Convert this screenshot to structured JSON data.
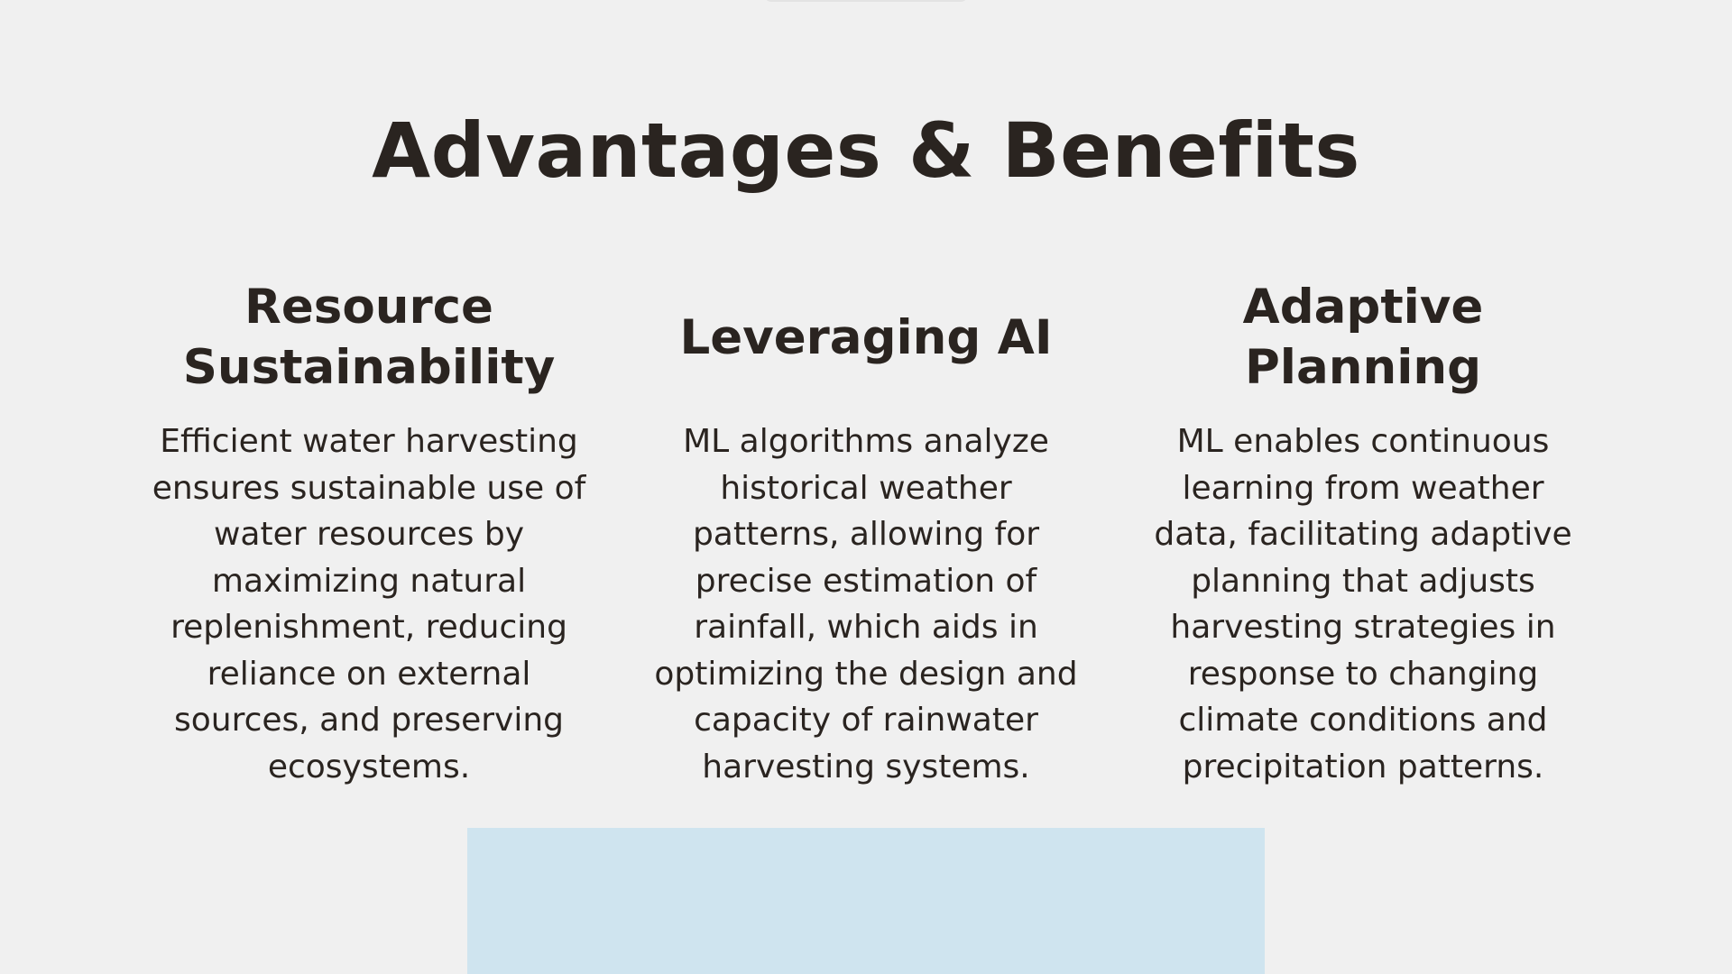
{
  "page": {
    "title": "Advantages & Benefits"
  },
  "columns": [
    {
      "title": "Resource Sustainability",
      "body": "Efficient water harvesting ensures sustainable use of water resources by maximizing natural replenishment, reducing reliance on external sources, and preserving ecosystems."
    },
    {
      "title": "Leveraging AI",
      "body": "ML algorithms analyze historical weather patterns, allowing for precise estimation of rainfall, which aids in optimizing the design and capacity of rainwater harvesting systems."
    },
    {
      "title": "Adaptive Planning",
      "body": "ML enables continuous learning from weather data, facilitating adaptive planning that adjusts harvesting strategies in response to changing climate conditions and precipitation patterns."
    }
  ],
  "colors": {
    "background": "#f0f0f0",
    "text": "#2a2420",
    "image_placeholder": "#cfe4ef"
  }
}
